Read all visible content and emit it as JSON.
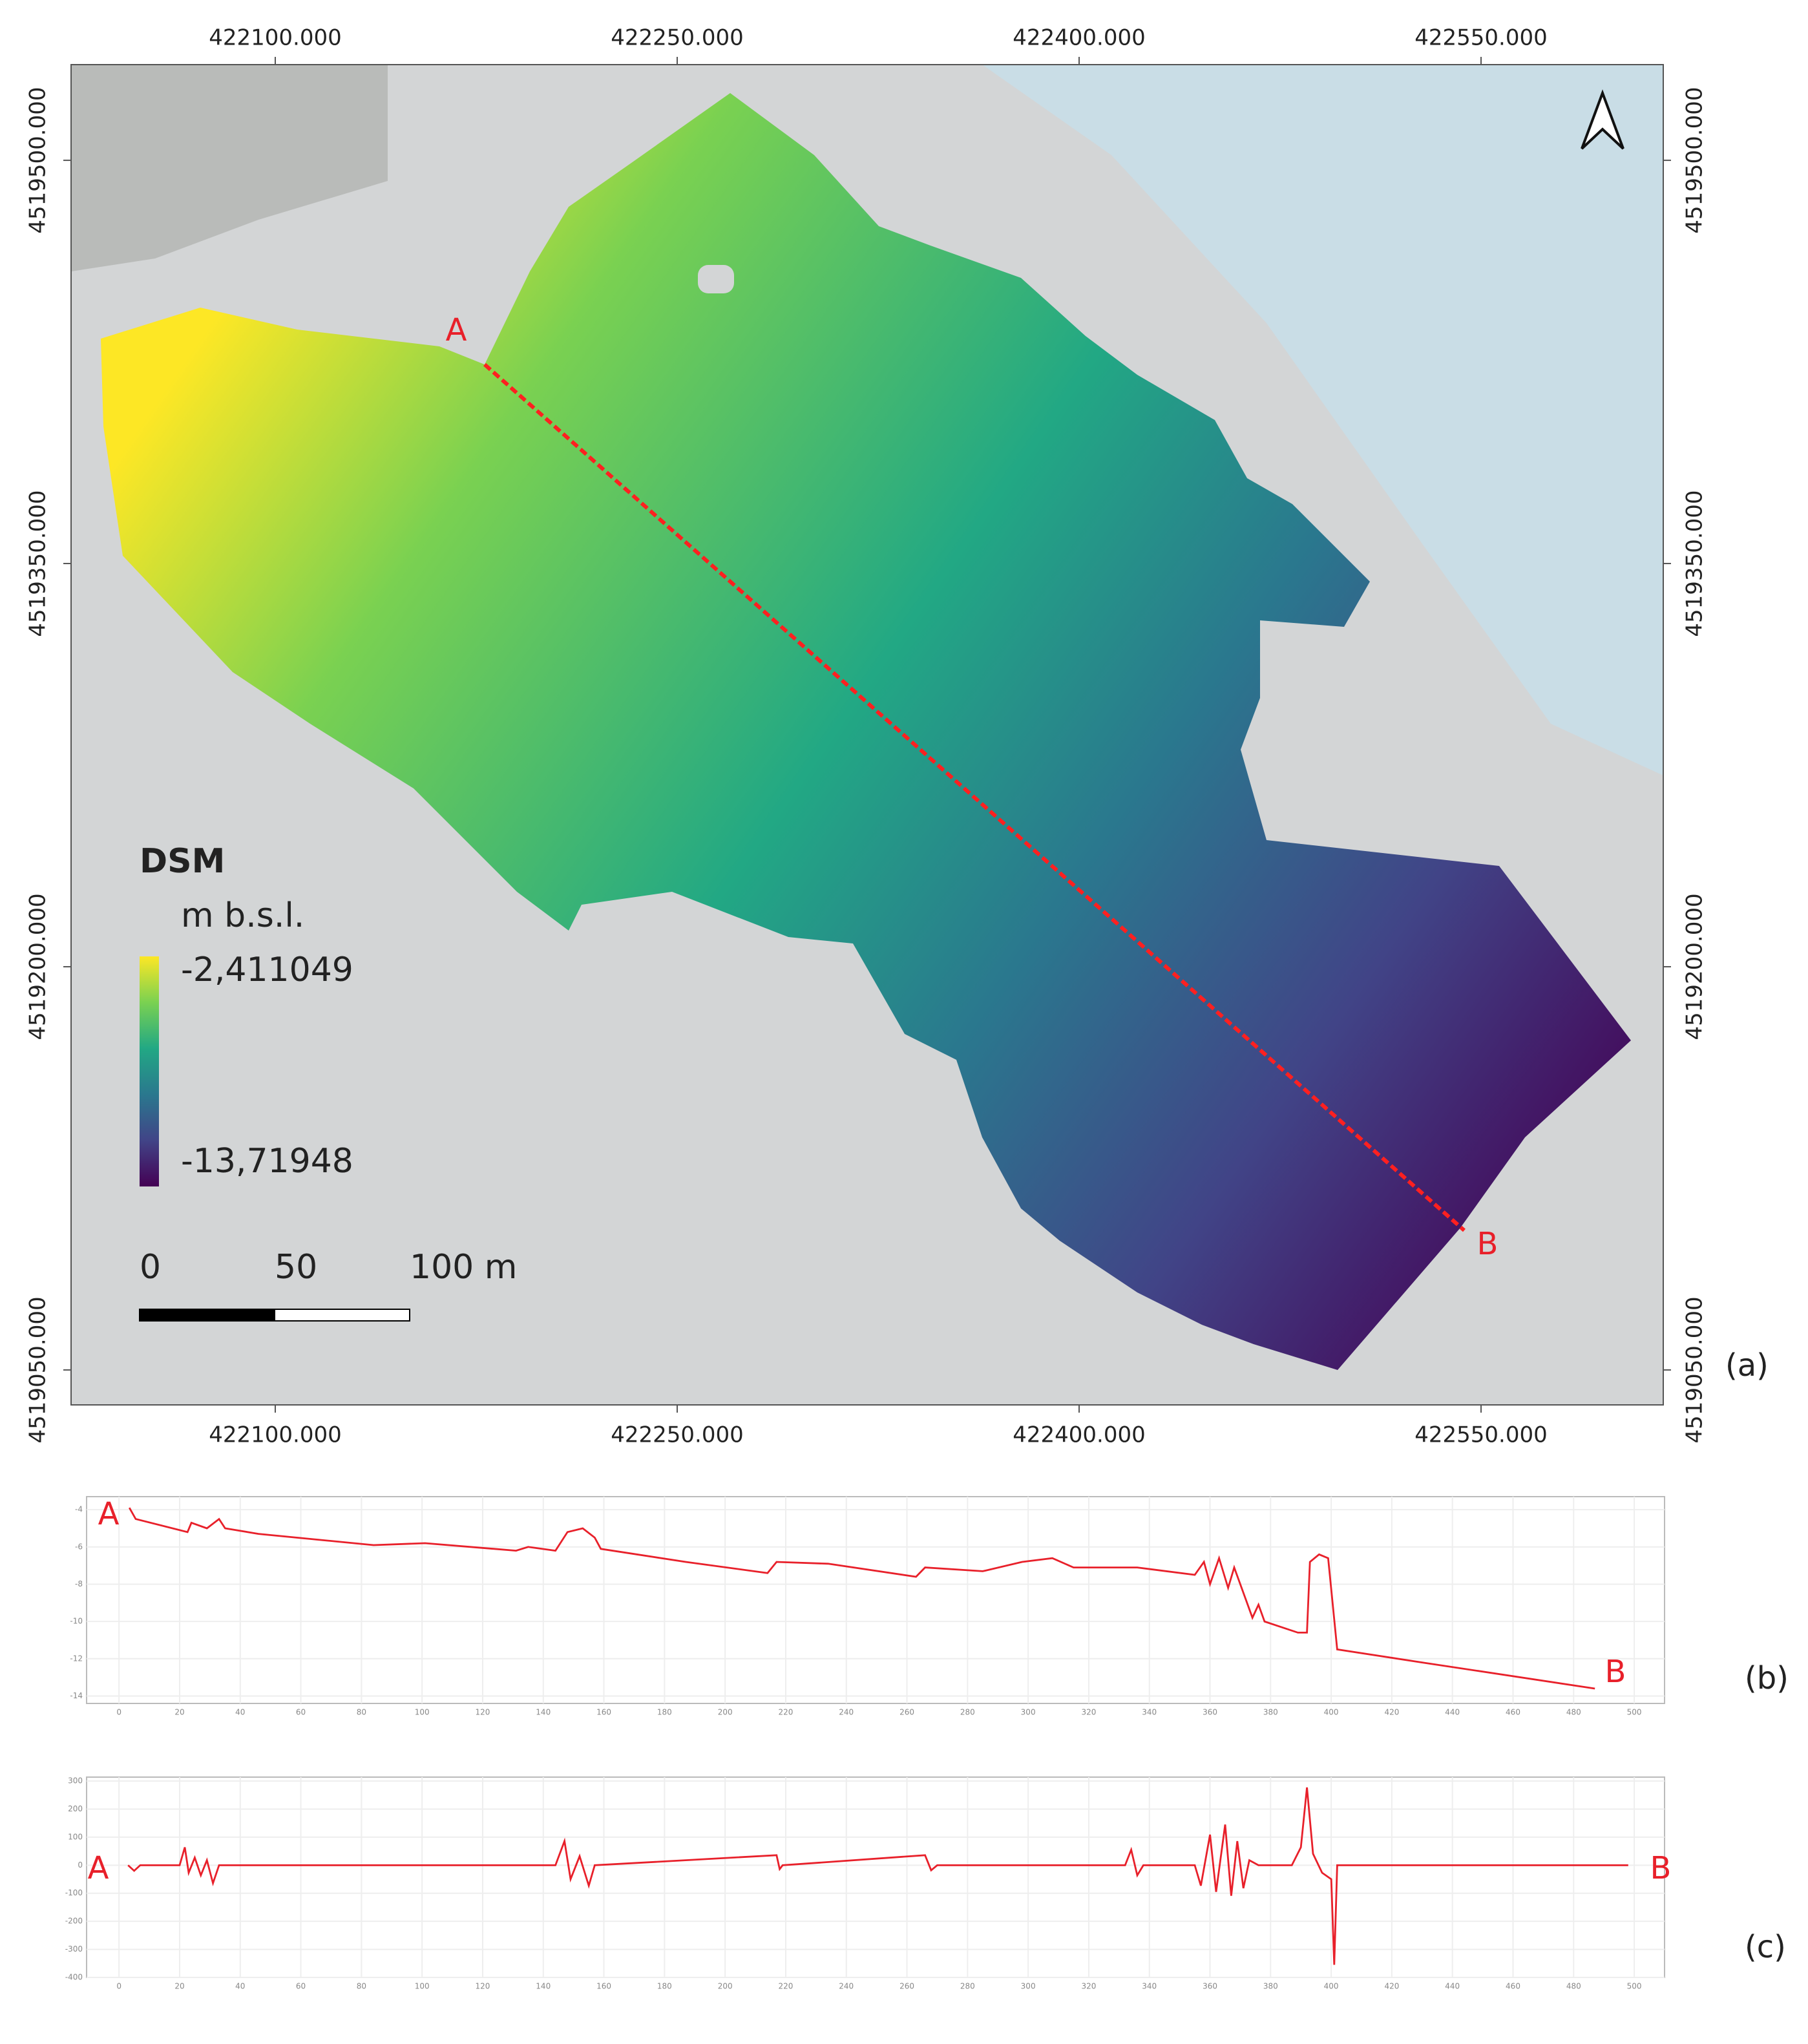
{
  "chart_data": [
    {
      "type": "map",
      "panel_label": "(a)",
      "xlim": [
        422023.8,
        422618
      ],
      "ylim": [
        4519037,
        4519535.6
      ],
      "xticks": [
        {
          "value": 422100,
          "label": "422100.000"
        },
        {
          "value": 422250,
          "label": "422250.000"
        },
        {
          "value": 422400,
          "label": "422400.000"
        },
        {
          "value": 422550,
          "label": "422550.000"
        }
      ],
      "yticks": [
        {
          "value": 4519050,
          "label": "4519050.000"
        },
        {
          "value": 4519200,
          "label": "4519200.000"
        },
        {
          "value": 4519350,
          "label": "4519350.000"
        },
        {
          "value": 4519500,
          "label": "4519500.000"
        }
      ],
      "profile_labels": [
        "A",
        "B"
      ],
      "colorbar": {
        "title": "DSM",
        "unit": "m b.s.l.",
        "colors": [
          "#fde725",
          "#7ad151",
          "#22a884",
          "#2a788e",
          "#414487",
          "#440154"
        ],
        "ticks": [
          {
            "value": -2.411049,
            "label": "-2,411049"
          },
          {
            "value": -13.71948,
            "label": "-13,71948"
          }
        ]
      },
      "scalebar": {
        "ticks": [
          0,
          50,
          {
            "value": 100,
            "label": "100 m"
          }
        ]
      }
    },
    {
      "type": "line",
      "panel_label": "(b)",
      "annotations": [
        "A",
        "B"
      ],
      "color": "#e8202a",
      "grid": true,
      "xlim": [
        -10.7,
        510
      ],
      "ylim": [
        -14.4,
        -3.3
      ],
      "xticks": [
        0,
        20,
        40,
        60,
        80,
        100,
        120,
        140,
        160,
        180,
        200,
        220,
        240,
        260,
        280,
        300,
        320,
        340,
        360,
        380,
        400,
        420,
        440,
        460,
        480,
        500
      ],
      "yticks": [
        -4,
        -6,
        -8,
        -10,
        -12,
        -14
      ],
      "x": [
        3.4,
        5.5,
        22.6,
        23.9,
        29,
        33,
        35,
        46,
        84,
        101,
        131,
        135,
        144,
        148,
        153,
        157,
        159,
        187,
        214,
        217,
        234,
        263,
        266,
        285,
        298,
        308,
        315,
        336,
        355,
        358,
        360,
        363,
        366,
        368,
        372,
        374,
        376,
        378,
        389,
        392,
        393,
        396,
        399,
        402,
        430,
        487
      ],
      "values": [
        -3.9,
        -4.5,
        -5.2,
        -4.7,
        -5,
        -4.5,
        -5,
        -5.3,
        -5.9,
        -5.8,
        -6.2,
        -6,
        -6.2,
        -5.2,
        -5,
        -5.5,
        -6.1,
        -6.8,
        -7.4,
        -6.8,
        -6.9,
        -7.6,
        -7.1,
        -7.3,
        -6.8,
        -6.6,
        -7.1,
        -7.1,
        -7.5,
        -6.8,
        -8,
        -6.6,
        -8.2,
        -7.1,
        -8.9,
        -9.8,
        -9.1,
        -10,
        -10.6,
        -10.6,
        -6.8,
        -6.4,
        -6.6,
        -11.5,
        -12.2,
        -13.6
      ]
    },
    {
      "type": "line",
      "panel_label": "(c)",
      "annotations": [
        "A",
        "B"
      ],
      "color": "#e8202a",
      "grid": true,
      "xlim": [
        -10.7,
        510
      ],
      "ylim": [
        -400,
        314
      ],
      "xticks": [
        0,
        20,
        40,
        60,
        80,
        100,
        120,
        140,
        160,
        180,
        200,
        220,
        240,
        260,
        280,
        300,
        320,
        340,
        360,
        380,
        400,
        420,
        440,
        460,
        480,
        500
      ],
      "yticks": [
        300,
        200,
        100,
        0,
        -100,
        -200,
        -300,
        -400
      ],
      "x": [
        3,
        5,
        7,
        20,
        21.7,
        23,
        25,
        27,
        29,
        31,
        33,
        144,
        147,
        149,
        152,
        155,
        157,
        217,
        218,
        219,
        266,
        268,
        270,
        332,
        334,
        336,
        338,
        355,
        357,
        360,
        362,
        365,
        367,
        369,
        371,
        373,
        376,
        387,
        390,
        392,
        394,
        397,
        400,
        401,
        402,
        498
      ],
      "values": [
        0,
        -20,
        0,
        0,
        64,
        -27,
        27,
        -36,
        18,
        -64,
        0,
        0,
        86,
        -50,
        32,
        -73,
        0,
        36,
        -14,
        0,
        36,
        -18,
        0,
        0,
        55,
        -36,
        0,
        0,
        -73,
        109,
        -95,
        145,
        -109,
        86,
        -82,
        18,
        0,
        0,
        64,
        277,
        41,
        -27,
        -50,
        -355,
        0,
        0
      ]
    }
  ]
}
